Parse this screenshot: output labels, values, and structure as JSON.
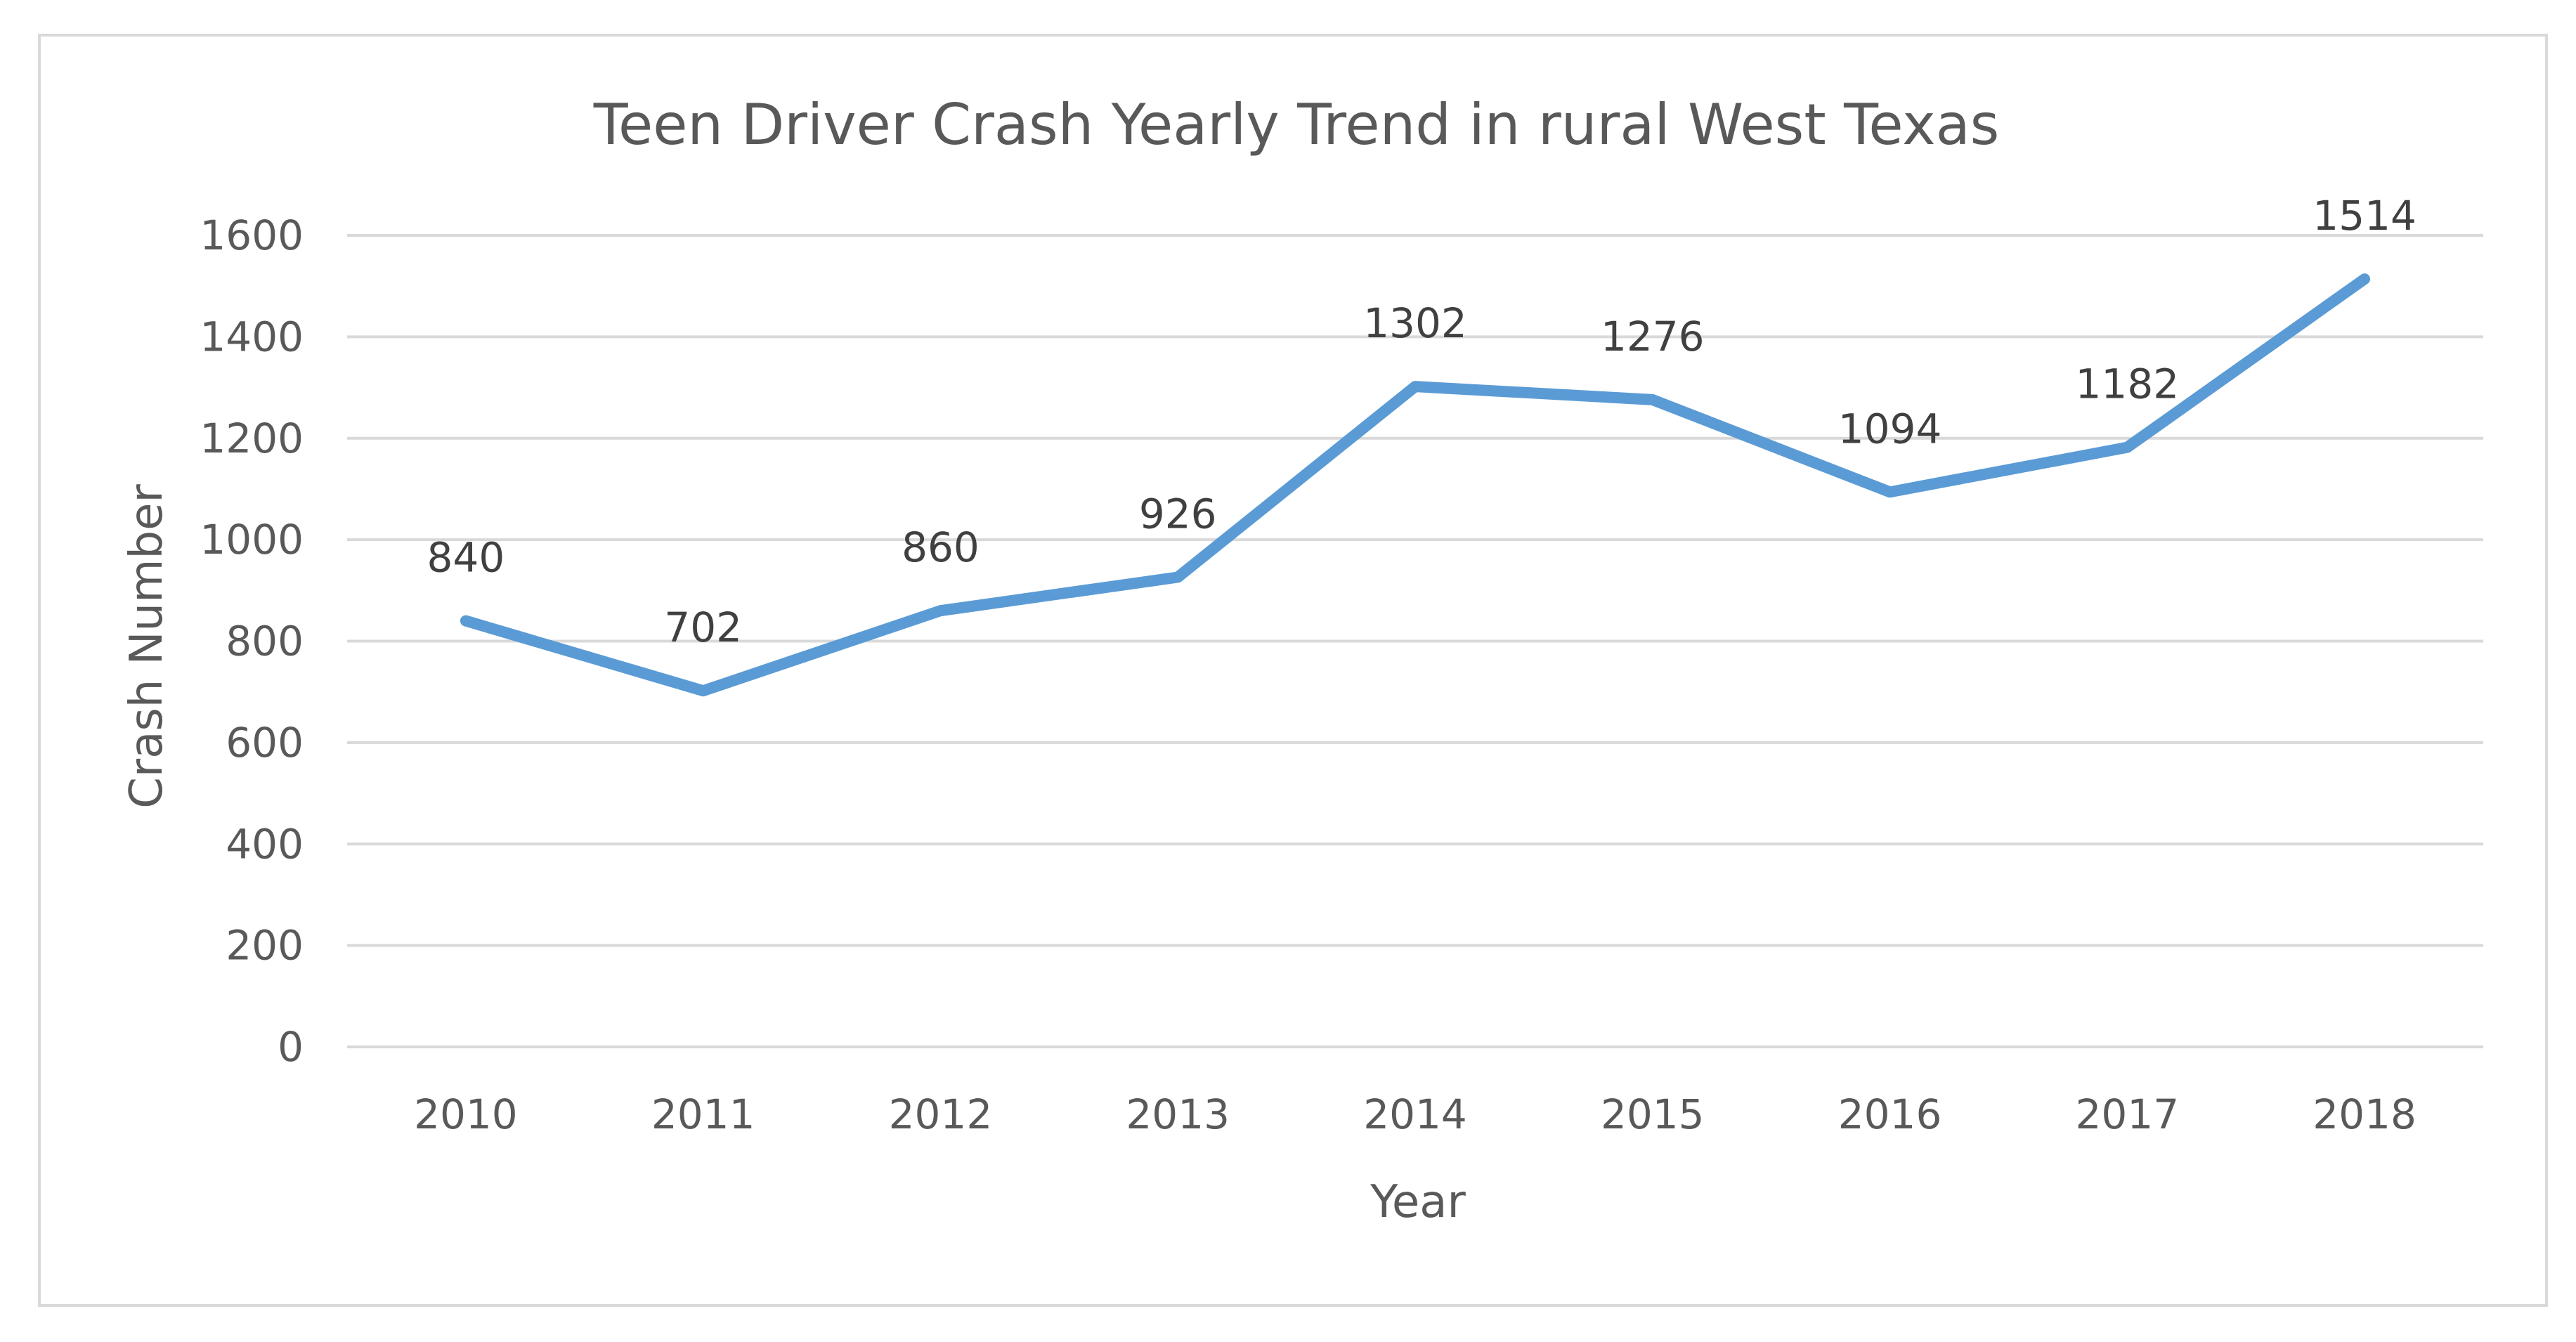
{
  "chart_data": {
    "type": "line",
    "title": "Teen Driver Crash Yearly Trend in rural West Texas",
    "xlabel": "Year",
    "ylabel": "Crash Number",
    "categories": [
      "2010",
      "2011",
      "2012",
      "2013",
      "2014",
      "2015",
      "2016",
      "2017",
      "2018"
    ],
    "values": [
      840,
      702,
      860,
      926,
      1302,
      1276,
      1094,
      1182,
      1514
    ],
    "data_labels": [
      "840",
      "702",
      "860",
      "926",
      "1302",
      "1276",
      "1094",
      "1182",
      "1514"
    ],
    "ylim": [
      0,
      1600
    ],
    "y_ticks": [
      "0",
      "200",
      "400",
      "600",
      "800",
      "1000",
      "1200",
      "1400",
      "1600"
    ],
    "y_tick_values": [
      0,
      200,
      400,
      600,
      800,
      1000,
      1200,
      1400,
      1600
    ],
    "grid": true,
    "legend": "none",
    "line_color": "#5b9bd5"
  }
}
